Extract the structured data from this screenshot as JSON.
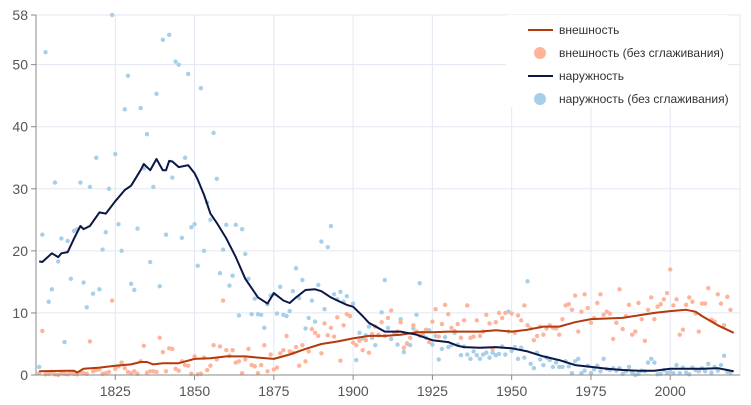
{
  "chart_data": {
    "type": "line",
    "title": "",
    "xlabel": "",
    "ylabel": "",
    "xlim": [
      1800,
      2022
    ],
    "ylim": [
      0,
      58
    ],
    "x_ticks": [
      "1825",
      "1850",
      "1875",
      "1900",
      "1925",
      "1950",
      "1975",
      "2000"
    ],
    "y_ticks": [
      "0",
      "10",
      "20",
      "30",
      "40",
      "50",
      "58"
    ],
    "grid": true,
    "legend_position": "top-right",
    "colors": {
      "vneshnost_line": "#b23a0c",
      "vneshnost_dots": "#fdb49a",
      "naruzhnost_line": "#0b1747",
      "naruzhnost_dots": "#a6cfe8"
    },
    "series": [
      {
        "name": "внешность",
        "kind": "line",
        "x": [
          1801,
          1810,
          1812,
          1813,
          1815,
          1820,
          1825,
          1830,
          1833,
          1835,
          1837,
          1840,
          1845,
          1850,
          1855,
          1860,
          1866,
          1870,
          1875,
          1880,
          1885,
          1890,
          1895,
          1900,
          1905,
          1910,
          1915,
          1920,
          1925,
          1930,
          1935,
          1940,
          1945,
          1950,
          1955,
          1960,
          1965,
          1970,
          1975,
          1980,
          1985,
          1990,
          1995,
          2000,
          2005,
          2008,
          2010,
          2015,
          2020
        ],
        "y": [
          0.6,
          0.7,
          0.7,
          0.4,
          1.0,
          1.2,
          1.5,
          1.7,
          2.1,
          2.1,
          1.7,
          1.9,
          1.9,
          2.6,
          2.7,
          3.0,
          3.0,
          2.8,
          2.6,
          3.3,
          4.2,
          5.0,
          5.4,
          5.9,
          6.3,
          6.3,
          6.5,
          6.9,
          6.9,
          7.0,
          7.0,
          7.0,
          7.2,
          7.0,
          7.3,
          7.8,
          7.8,
          8.5,
          9.0,
          9.1,
          9.2,
          9.6,
          10.0,
          10.3,
          10.5,
          10.2,
          9.5,
          8.0,
          6.8
        ]
      },
      {
        "name": "внешность (без сглаживания)",
        "kind": "scatter",
        "x_start": 1801,
        "y": [
          0.3,
          7.1,
          0.1,
          0.2,
          0.5,
          0.1,
          0.0,
          0.3,
          0.2,
          0.1,
          0.4,
          0.2,
          0.1,
          0.5,
          0.3,
          0.2,
          5.4,
          0.6,
          0.8,
          0.9,
          0.2,
          0.3,
          0.5,
          12,
          1.0,
          1.4,
          2.0,
          1.1,
          0.5,
          0.3,
          0.6,
          0.2,
          2.2,
          4.7,
          0.4,
          0.6,
          0.6,
          0.5,
          6.0,
          3.7,
          0.6,
          4.3,
          4.2,
          1.0,
          0.7,
          2.2,
          1.6,
          1.5,
          0.2,
          3.0,
          0.1,
          0.2,
          2.8,
          0.8,
          1.5,
          4.8,
          2.5,
          4.6,
          12,
          4.0,
          3.1,
          4.0,
          2.0,
          2.2,
          0.3,
          2.5,
          4.2,
          1.6,
          1.4,
          0.3,
          1.6,
          4.8,
          0.6,
          3.3,
          0.9,
          1.2,
          3.5,
          4.0,
          6.3,
          3.8,
          3.6,
          4.5,
          1.5,
          4.8,
          2.2,
          3.8,
          7.4,
          6.8,
          6.3,
          3.5,
          8.3,
          6.4,
          7.6,
          6.2,
          9.3,
          2.3,
          8.0,
          9.8,
          9.5,
          5.2,
          4.8,
          5.5,
          4.0,
          5.6,
          3.6,
          6.6,
          7.8,
          6.5,
          8.5,
          6.3,
          9.2,
          10.4,
          6.8,
          7.0,
          8.5,
          4.4,
          5.0,
          6.0,
          8.0,
          7.0,
          6.3,
          6.8,
          7.3,
          5.3,
          8.6,
          10.6,
          6.2,
          8.2,
          11.3,
          9.8,
          7.6,
          7.1,
          8.2,
          6.0,
          8.8,
          11.2,
          6.0,
          6.2,
          8.8,
          6.3,
          7.0,
          9.7,
          8.3,
          4.2,
          8.5,
          10.0,
          9.2,
          10.0,
          7.0,
          9.9,
          6.8,
          9.6,
          8.8,
          11.2,
          8.0,
          7.5,
          5.6,
          6.3,
          7.8,
          6.5,
          7.5,
          8.0,
          7.6,
          7.5,
          6.5,
          9.0,
          11.2,
          11.4,
          10.5,
          12.8,
          7.0,
          10.2,
          13.0,
          10.8,
          8.4,
          9.2,
          11.6,
          13.0,
          9.7,
          10.2,
          9.9,
          5.8,
          8.4,
          13.8,
          7.4,
          9.5,
          11.3,
          6.5,
          7.0,
          11.6,
          9.0,
          5.5,
          10.5,
          12.5,
          9.0,
          11.0,
          11.4,
          12.2,
          13.2,
          17.0,
          11.2,
          12.2,
          6.5,
          7.3,
          11.3,
          12.5,
          11.8,
          9.9,
          7.0,
          11.5,
          11.5,
          14.0,
          8.9,
          8.6,
          13.0,
          11.5,
          8.0,
          12.6,
          10.5
        ]
      },
      {
        "name": "наружность",
        "kind": "line",
        "x": [
          1801,
          1802,
          1805,
          1807,
          1808,
          1810,
          1812,
          1814,
          1815,
          1817,
          1820,
          1822,
          1825,
          1828,
          1830,
          1833,
          1834,
          1836,
          1838,
          1840,
          1841,
          1842,
          1843,
          1845,
          1848,
          1850,
          1851,
          1853,
          1855,
          1857,
          1860,
          1863,
          1866,
          1868,
          1870,
          1873,
          1875,
          1878,
          1880,
          1882,
          1885,
          1888,
          1890,
          1893,
          1895,
          1898,
          1900,
          1903,
          1905,
          1910,
          1915,
          1920,
          1925,
          1930,
          1933,
          1935,
          1940,
          1945,
          1950,
          1955,
          1960,
          1965,
          1970,
          1975,
          1980,
          1985,
          1990,
          1995,
          2000,
          2005,
          2010,
          2015,
          2018,
          2020
        ],
        "y": [
          18.3,
          18.2,
          19.6,
          19.0,
          19.6,
          19.8,
          22.0,
          24.0,
          23.5,
          24.0,
          26.2,
          26.0,
          28.0,
          29.8,
          30.5,
          33.0,
          34.0,
          33.0,
          34.8,
          33.0,
          33.0,
          34.5,
          34.4,
          33.5,
          33.8,
          32.5,
          31.5,
          29.0,
          26.0,
          24.5,
          22.0,
          19.0,
          15.5,
          14.0,
          12.5,
          11.5,
          13.2,
          12.0,
          11.6,
          12.5,
          13.7,
          13.8,
          13.5,
          12.5,
          12.0,
          11.3,
          11.0,
          9.5,
          8.4,
          7.0,
          7.0,
          6.5,
          5.6,
          5.3,
          4.7,
          4.5,
          4.4,
          4.5,
          4.3,
          3.8,
          3.0,
          2.4,
          1.6,
          1.3,
          1.0,
          0.8,
          0.7,
          0.7,
          1.0,
          1.0,
          1.0,
          1.1,
          0.8,
          0.6
        ]
      },
      {
        "name": "наружность (без сглаживания)",
        "kind": "scatter",
        "x_start": 1801,
        "y": [
          1.3,
          22.6,
          52,
          11.8,
          13.8,
          31,
          18.3,
          22,
          5.3,
          21.6,
          15.5,
          23.2,
          23.5,
          31,
          14.9,
          10.9,
          30.3,
          13.1,
          35,
          13.8,
          20.2,
          23,
          30,
          58,
          35.6,
          24.3,
          20,
          42.8,
          48.2,
          14.7,
          13.7,
          23.6,
          43,
          33.3,
          38.8,
          18.2,
          30.3,
          45.3,
          14.3,
          54,
          22.6,
          54.8,
          31.8,
          50.5,
          50,
          22.1,
          35,
          48.5,
          23.8,
          24.3,
          17.6,
          46.2,
          20,
          27.8,
          25,
          39,
          31.6,
          16.4,
          20.2,
          24.2,
          14.4,
          16,
          24.2,
          9.6,
          23.5,
          19.5,
          15.5,
          9.8,
          12.3,
          9.8,
          9.7,
          7.6,
          11.4,
          12.8,
          13,
          9.9,
          14.2,
          9.7,
          9.5,
          10.3,
          13.5,
          17.2,
          12.4,
          15.3,
          7.5,
          9.2,
          12,
          8.6,
          14.5,
          21.5,
          10.6,
          20.6,
          24,
          13,
          12.2,
          13.4,
          11.8,
          12.7,
          9.5,
          11.5,
          2.4,
          6.8,
          5.9,
          6.4,
          7.8,
          6,
          4.8,
          6.4,
          10.1,
          15.3,
          7.6,
          5.8,
          6.8,
          4.9,
          9.0,
          3.7,
          5.1,
          4.8,
          7.5,
          9.7,
          14.8,
          6.4,
          6,
          7.2,
          4.9,
          6.3,
          2.5,
          4.2,
          6.1,
          4.5,
          4.8,
          6.8,
          4.9,
          3.2,
          4.6,
          3.3,
          2.6,
          3.8,
          3.2,
          2.6,
          3.3,
          3.6,
          2.8,
          3.6,
          3.2,
          3.4,
          4.6,
          3.3,
          10.2,
          3.9,
          4.5,
          2.6,
          4.4,
          2.8,
          15.1,
          1.8,
          1.1,
          3.6,
          2.5,
          1.6,
          2.8,
          2.4,
          1.3,
          2.0,
          1.3,
          1.3,
          2.2,
          1.4,
          0.3,
          2.2,
          2.6,
          0.3,
          0.7,
          1.5,
          0.3,
          0.9,
          1.5,
          0.6,
          2.6,
          1.0,
          0.8,
          1.1,
          0.7,
          1.1,
          0.2,
          0.6,
          1.3,
          0.4,
          0.0,
          0.2,
          0.7,
          0.6,
          2.0,
          2.6,
          2.0,
          0.1,
          0.2,
          0.8,
          0.3,
          0.5,
          0.3,
          1.6,
          0.3,
          1.2,
          0.4,
          0.1,
          1.2,
          0.8,
          0.6,
          1.1,
          0.6,
          1.8,
          0.4,
          1.3,
          0.7,
          1.6,
          3.1,
          0.5,
          0.4
        ]
      }
    ]
  }
}
